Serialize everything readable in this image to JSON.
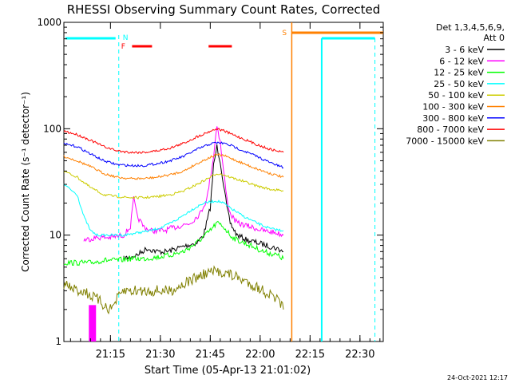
{
  "chart_data": {
    "type": "line",
    "title": "RHESSI Observing Summary Count Rates, Corrected",
    "xlabel": "Start Time (05-Apr-13 21:01:02)",
    "ylabel": "Corrected Count Rate (s⁻¹ detector⁻¹)",
    "yscale": "log",
    "ylim": [
      1,
      1000
    ],
    "xlim_minutes": [
      0,
      96
    ],
    "x_ticks": [
      {
        "m": 14,
        "label": "21:15"
      },
      {
        "m": 29,
        "label": "21:30"
      },
      {
        "m": 44,
        "label": "21:45"
      },
      {
        "m": 59,
        "label": "22:00"
      },
      {
        "m": 74,
        "label": "22:15"
      },
      {
        "m": 89,
        "label": "22:30"
      }
    ],
    "y_ticks": [
      {
        "v": 1,
        "label": "1"
      },
      {
        "v": 10,
        "label": "10"
      },
      {
        "v": 100,
        "label": "100"
      },
      {
        "v": 1000,
        "label": "1000"
      }
    ],
    "legend": {
      "header1": "Det 1,3,4,5,6,9,",
      "header2": "Att 0",
      "placement": "right"
    },
    "series": [
      {
        "name": "3 - 6 keV",
        "color": "#000000",
        "x": [
          18,
          22,
          25,
          28,
          31,
          34,
          37,
          40,
          42,
          44,
          45,
          46,
          47,
          48,
          49,
          50,
          52,
          55,
          58,
          61,
          64,
          66
        ],
        "y": [
          6,
          6.5,
          7.5,
          7,
          7,
          7.5,
          8,
          8.5,
          10,
          18,
          45,
          68,
          50,
          30,
          18,
          13,
          10,
          9,
          8.5,
          8,
          7.5,
          7
        ]
      },
      {
        "name": "6 - 12 keV",
        "color": "#ff00ff",
        "x": [
          6,
          10,
          14,
          18,
          20,
          21,
          22,
          24,
          26,
          30,
          34,
          38,
          41,
          43,
          45,
          46,
          47,
          48,
          49,
          50,
          52,
          56,
          60,
          64,
          66
        ],
        "y": [
          9,
          9.5,
          9.5,
          10,
          12,
          22,
          15,
          12,
          11,
          11,
          12,
          13,
          16,
          22,
          55,
          110,
          75,
          40,
          22,
          16,
          13,
          12,
          11,
          10.5,
          10
        ]
      },
      {
        "name": "12 - 25 keV",
        "color": "#00ff00",
        "x": [
          0,
          4,
          8,
          12,
          16,
          20,
          24,
          28,
          32,
          36,
          40,
          44,
          46,
          48,
          50,
          52,
          56,
          60,
          64,
          66
        ],
        "y": [
          5.5,
          5.5,
          5.5,
          5.8,
          5.8,
          6,
          6,
          6.2,
          6.5,
          7,
          8.5,
          11,
          13,
          12,
          10,
          9,
          8,
          7,
          6.5,
          6
        ]
      },
      {
        "name": "25 - 50 keV",
        "color": "#00ffff",
        "x": [
          0,
          4,
          6,
          8,
          10,
          14,
          18,
          22,
          26,
          30,
          34,
          38,
          42,
          46,
          48,
          50,
          54,
          58,
          62,
          66
        ],
        "y": [
          30,
          24,
          15,
          11,
          10,
          10,
          10,
          10.5,
          11,
          12,
          14,
          17,
          20,
          21,
          20,
          18,
          15,
          13,
          11.5,
          11
        ]
      },
      {
        "name": "50 - 100 keV",
        "color": "#cccc00",
        "x": [
          0,
          4,
          8,
          12,
          16,
          20,
          24,
          28,
          32,
          36,
          40,
          44,
          46,
          48,
          50,
          54,
          58,
          62,
          66
        ],
        "y": [
          40,
          35,
          28,
          24,
          23,
          22.5,
          22.5,
          23,
          24,
          26,
          30,
          35,
          38,
          37,
          35,
          32,
          29,
          27,
          26
        ]
      },
      {
        "name": "100 - 300 keV",
        "color": "#ff8000",
        "x": [
          0,
          4,
          8,
          12,
          16,
          20,
          24,
          28,
          32,
          36,
          40,
          44,
          46,
          48,
          50,
          54,
          58,
          62,
          66
        ],
        "y": [
          55,
          50,
          44,
          38,
          35,
          34,
          34,
          35,
          37,
          40,
          47,
          54,
          57,
          56,
          53,
          47,
          42,
          38,
          35
        ]
      },
      {
        "name": "300 - 800 keV",
        "color": "#0000ff",
        "x": [
          0,
          4,
          8,
          12,
          16,
          20,
          24,
          28,
          32,
          36,
          40,
          44,
          46,
          48,
          50,
          54,
          58,
          62,
          66
        ],
        "y": [
          72,
          68,
          58,
          50,
          46,
          45,
          45,
          47,
          50,
          55,
          64,
          72,
          74,
          73,
          70,
          62,
          55,
          48,
          43
        ]
      },
      {
        "name": "800 - 7000 keV",
        "color": "#ff0000",
        "x": [
          0,
          4,
          8,
          12,
          16,
          20,
          24,
          28,
          32,
          36,
          40,
          44,
          46,
          48,
          50,
          54,
          58,
          62,
          66
        ],
        "y": [
          95,
          88,
          78,
          68,
          62,
          60,
          60,
          62,
          66,
          73,
          84,
          95,
          100,
          96,
          90,
          80,
          71,
          64,
          60
        ]
      },
      {
        "name": "7000 - 15000 keV",
        "color": "#808000",
        "x": [
          0,
          2,
          4,
          6,
          8,
          10,
          12,
          14,
          16,
          18,
          20,
          24,
          28,
          32,
          36,
          40,
          44,
          48,
          52,
          56,
          60,
          64,
          66
        ],
        "y": [
          3.5,
          3.2,
          3,
          3,
          2.7,
          2.5,
          2.2,
          2,
          2.5,
          3,
          3,
          3,
          3,
          3,
          3.5,
          4,
          4.5,
          4.5,
          4,
          3.5,
          3,
          2.5,
          2
        ]
      }
    ],
    "flags": [
      {
        "label": "N",
        "color": "#00ffff"
      },
      {
        "label": "F",
        "color": "#ff0000"
      },
      {
        "label": "S",
        "color": "#ff8000"
      }
    ]
  },
  "footer": {
    "date": "24-Oct-2021 12:17"
  }
}
